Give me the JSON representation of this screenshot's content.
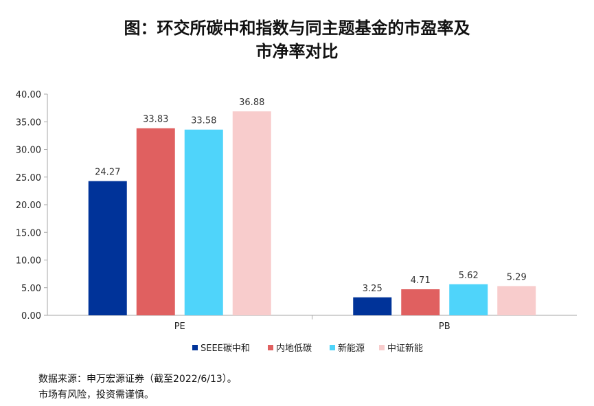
{
  "chart_data": {
    "type": "bar",
    "title_line1": "图：环交所碳中和指数与同主题基金的市盈率及",
    "title_line2": "市净率对比",
    "categories": [
      "PE",
      "PB"
    ],
    "series": [
      {
        "name": "SEEE碳中和",
        "color": "#003399",
        "values": [
          24.27,
          3.25
        ],
        "labels": [
          "24.27",
          "3.25"
        ]
      },
      {
        "name": "内地低碳",
        "color": "#E06060",
        "values": [
          33.83,
          4.71
        ],
        "labels": [
          "33.83",
          "4.71"
        ]
      },
      {
        "name": "新能源",
        "color": "#4FD4FA",
        "values": [
          33.58,
          5.62
        ],
        "labels": [
          "33.58",
          "5.62"
        ]
      },
      {
        "name": "中证新能",
        "color": "#F8CCCC",
        "values": [
          36.88,
          5.29
        ],
        "labels": [
          "36.88",
          "5.29"
        ]
      }
    ],
    "ylim": [
      0,
      40
    ],
    "yticks": [
      "0.00",
      "5.00",
      "10.00",
      "15.00",
      "20.00",
      "25.00",
      "30.00",
      "35.00",
      "40.00"
    ],
    "grid": false,
    "legend_position": "bottom"
  },
  "footnote": {
    "source": "数据来源：申万宏源证券（截至2022/6/13）。",
    "risk": "市场有风险，投资需谨慎。"
  }
}
